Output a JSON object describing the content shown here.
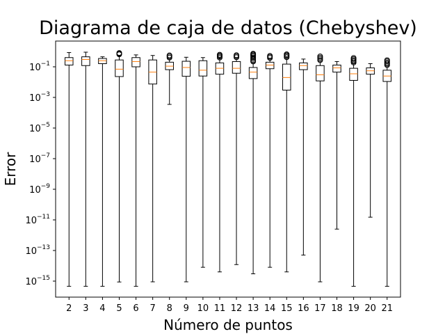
{
  "chart_data": {
    "type": "boxplot",
    "title": "Diagrama de caja de datos (Chebyshev)",
    "xlabel": "Número de puntos",
    "ylabel": "Error",
    "yscale": "log",
    "ylim": [
      1e-16,
      10
    ],
    "yticks": [
      {
        "base": "10",
        "exp": "−1",
        "value": 0.1
      },
      {
        "base": "10",
        "exp": "−3",
        "value": 0.001
      },
      {
        "base": "10",
        "exp": "−5",
        "value": 1e-05
      },
      {
        "base": "10",
        "exp": "−7",
        "value": 1e-07
      },
      {
        "base": "10",
        "exp": "−9",
        "value": 1e-09
      },
      {
        "base": "10",
        "exp": "−11",
        "value": 1e-11
      },
      {
        "base": "10",
        "exp": "−13",
        "value": 1e-13
      },
      {
        "base": "10",
        "exp": "−15",
        "value": 1e-15
      }
    ],
    "categories": [
      "2",
      "3",
      "4",
      "5",
      "6",
      "7",
      "8",
      "9",
      "10",
      "11",
      "12",
      "13",
      "14",
      "15",
      "16",
      "17",
      "18",
      "19",
      "20",
      "21"
    ],
    "boxes": [
      {
        "whislo": 4.6e-16,
        "q1": 0.13,
        "med": 0.25,
        "q3": 0.4,
        "whishi": 0.85,
        "fliers": []
      },
      {
        "whislo": 4.6e-16,
        "q1": 0.12,
        "med": 0.3,
        "q3": 0.45,
        "whishi": 0.9,
        "fliers": []
      },
      {
        "whislo": 4.6e-16,
        "q1": 0.16,
        "med": 0.25,
        "q3": 0.35,
        "whishi": 0.45,
        "fliers": []
      },
      {
        "whislo": 8.8e-16,
        "q1": 0.023,
        "med": 0.07,
        "q3": 0.28,
        "whishi": 0.55,
        "fliers": [
          0.65,
          0.72,
          0.8
        ]
      },
      {
        "whislo": 4.6e-16,
        "q1": 0.1,
        "med": 0.22,
        "q3": 0.4,
        "whishi": 0.6,
        "fliers": []
      },
      {
        "whislo": 9e-16,
        "q1": 0.0075,
        "med": 0.045,
        "q3": 0.28,
        "whishi": 0.55,
        "fliers": []
      },
      {
        "whislo": 0.00035,
        "q1": 0.065,
        "med": 0.11,
        "q3": 0.2,
        "whishi": 0.33,
        "fliers": [
          0.4,
          0.48,
          0.56
        ]
      },
      {
        "whislo": 9e-16,
        "q1": 0.024,
        "med": 0.09,
        "q3": 0.23,
        "whishi": 0.42,
        "fliers": []
      },
      {
        "whislo": 8e-15,
        "q1": 0.025,
        "med": 0.06,
        "q3": 0.25,
        "whishi": 0.4,
        "fliers": []
      },
      {
        "whislo": 4e-15,
        "q1": 0.033,
        "med": 0.08,
        "q3": 0.18,
        "whishi": 0.35,
        "fliers": [
          0.4,
          0.47,
          0.55,
          0.62
        ]
      },
      {
        "whislo": 1.2e-14,
        "q1": 0.038,
        "med": 0.08,
        "q3": 0.22,
        "whishi": 0.36,
        "fliers": [
          0.42,
          0.5,
          0.58
        ]
      },
      {
        "whislo": 3e-15,
        "q1": 0.017,
        "med": 0.045,
        "q3": 0.09,
        "whishi": 0.18,
        "fliers": [
          0.22,
          0.27,
          0.33,
          0.4,
          0.48,
          0.56,
          0.64,
          0.72
        ]
      },
      {
        "whislo": 8e-15,
        "q1": 0.075,
        "med": 0.13,
        "q3": 0.2,
        "whishi": 0.32,
        "fliers": [
          0.38,
          0.45,
          0.52
        ]
      },
      {
        "whislo": 4e-15,
        "q1": 0.003,
        "med": 0.02,
        "q3": 0.15,
        "whishi": 0.36,
        "fliers": [
          0.42,
          0.5,
          0.58,
          0.66
        ]
      },
      {
        "whislo": 5e-14,
        "q1": 0.065,
        "med": 0.12,
        "q3": 0.18,
        "whishi": 0.32,
        "fliers": []
      },
      {
        "whislo": 9e-16,
        "q1": 0.012,
        "med": 0.03,
        "q3": 0.12,
        "whishi": 0.23,
        "fliers": [
          0.27,
          0.33,
          0.4,
          0.48
        ]
      },
      {
        "whislo": 2.5e-12,
        "q1": 0.045,
        "med": 0.085,
        "q3": 0.13,
        "whishi": 0.22,
        "fliers": []
      },
      {
        "whislo": 4.6e-16,
        "q1": 0.013,
        "med": 0.035,
        "q3": 0.08,
        "whishi": 0.16,
        "fliers": [
          0.19,
          0.23,
          0.27,
          0.32,
          0.38
        ]
      },
      {
        "whislo": 1.5e-11,
        "q1": 0.033,
        "med": 0.055,
        "q3": 0.085,
        "whishi": 0.16,
        "fliers": []
      },
      {
        "whislo": 4.6e-16,
        "q1": 0.011,
        "med": 0.025,
        "q3": 0.06,
        "whishi": 0.11,
        "fliers": [
          0.13,
          0.16,
          0.19,
          0.23,
          0.27
        ]
      }
    ],
    "box_color": "#000000",
    "median_color": "#ff7f0e",
    "grid": false,
    "legend": "none"
  }
}
